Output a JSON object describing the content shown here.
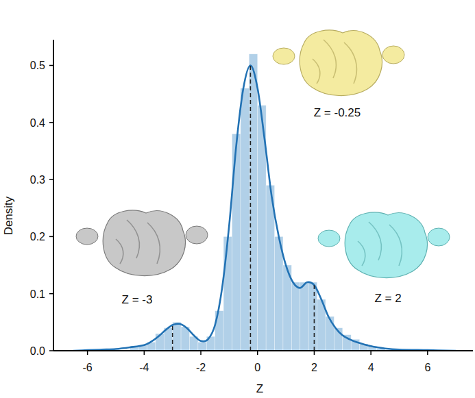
{
  "chart_data": {
    "type": "histogram",
    "xlabel": "Z",
    "ylabel": "Density",
    "xlim": [
      -7.2,
      7.6
    ],
    "ylim": [
      0,
      0.545
    ],
    "xticks": [
      -6,
      -4,
      -2,
      0,
      2,
      4,
      6
    ],
    "yticks": [
      {
        "value": 0,
        "label": "0.0"
      },
      0.1,
      0.2,
      0.3,
      0.4,
      0.5
    ],
    "color": "#a9cbe6",
    "bins": [
      -4.5,
      -4.2,
      -3.9,
      -3.6,
      -3.3,
      -3.0,
      -2.7,
      -2.4,
      -2.1,
      -1.8,
      -1.5,
      -1.2,
      -0.9,
      -0.6,
      -0.3,
      0.0,
      0.3,
      0.6,
      0.9,
      1.2,
      1.5,
      1.8,
      2.1,
      2.4,
      2.7,
      3.0,
      3.3,
      3.6,
      3.9,
      4.2,
      4.5
    ],
    "values": [
      0.008,
      0.01,
      0.015,
      0.03,
      0.04,
      0.05,
      0.042,
      0.025,
      0.015,
      0.025,
      0.07,
      0.2,
      0.38,
      0.46,
      0.52,
      0.43,
      0.29,
      0.2,
      0.15,
      0.12,
      0.12,
      0.12,
      0.09,
      0.06,
      0.04,
      0.028,
      0.02,
      0.012,
      0.008,
      0.004
    ],
    "kde": {
      "color": "#2272b4",
      "x": [
        -6.5,
        -6,
        -5.5,
        -5,
        -4.5,
        -4,
        -3.75,
        -3.5,
        -3.25,
        -3,
        -2.75,
        -2.5,
        -2.25,
        -2,
        -1.75,
        -1.5,
        -1.25,
        -1,
        -0.75,
        -0.5,
        -0.25,
        0,
        0.25,
        0.5,
        0.75,
        1,
        1.25,
        1.5,
        1.75,
        2,
        2.25,
        2.5,
        2.75,
        3,
        3.25,
        3.5,
        4,
        4.5,
        5,
        6,
        7
      ],
      "values": [
        0,
        0.001,
        0.002,
        0.003,
        0.006,
        0.01,
        0.016,
        0.025,
        0.036,
        0.045,
        0.047,
        0.04,
        0.027,
        0.017,
        0.02,
        0.045,
        0.11,
        0.22,
        0.36,
        0.46,
        0.5,
        0.46,
        0.37,
        0.27,
        0.2,
        0.15,
        0.12,
        0.11,
        0.12,
        0.115,
        0.09,
        0.06,
        0.04,
        0.027,
        0.02,
        0.015,
        0.008,
        0.004,
        0.002,
        0.001,
        0
      ]
    },
    "annotations": [
      {
        "text": "Z = -0.25",
        "x": -0.25,
        "y": 0.5
      },
      {
        "text": "Z = -3",
        "x": -3,
        "y": 0.045
      },
      {
        "text": "Z = 2",
        "x": 2,
        "y": 0.115
      }
    ]
  }
}
